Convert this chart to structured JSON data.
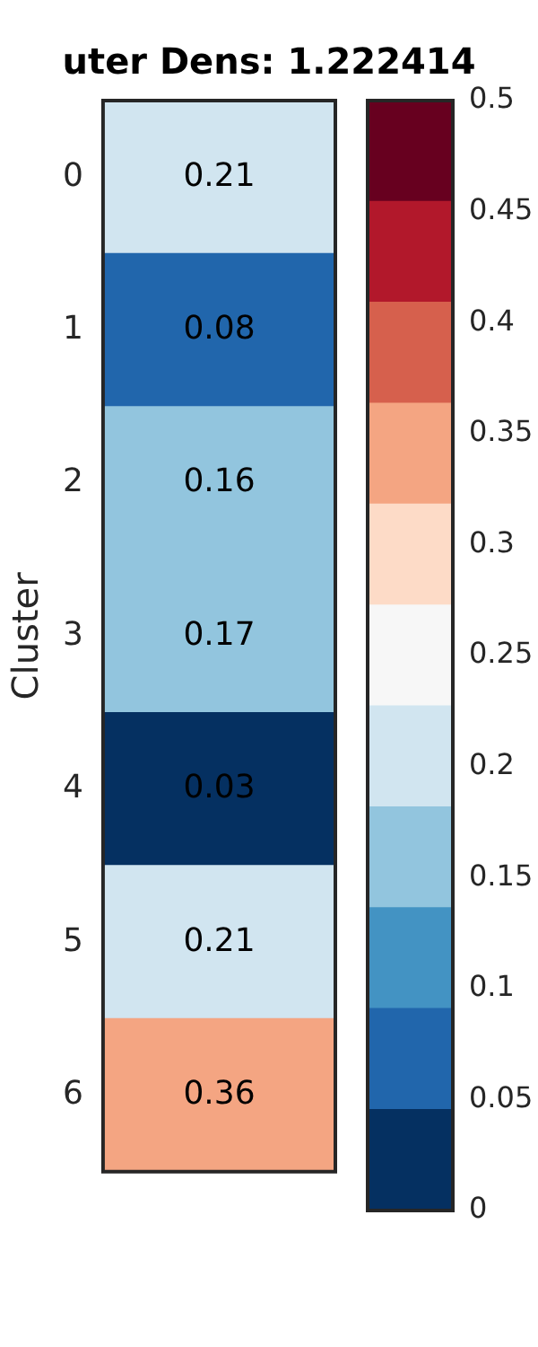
{
  "chart_data": {
    "type": "heatmap",
    "title": "uter Dens: 1.222414",
    "ylabel": "Cluster",
    "categories": [
      null
    ],
    "y_categories": [
      "0",
      "1",
      "2",
      "3",
      "4",
      "5",
      "6"
    ],
    "cells": [
      [
        0.21
      ],
      [
        0.08
      ],
      [
        0.16
      ],
      [
        0.17
      ],
      [
        0.03
      ],
      [
        0.21
      ],
      [
        0.36
      ]
    ],
    "data_labels": true,
    "colors": [
      "#053061",
      "#2166ac",
      "#4393c3",
      "#92c5de",
      "#d1e5f0",
      "#f7f7f7",
      "#fddbc7",
      "#f4a582",
      "#d6604d",
      "#b2182b",
      "#67001f"
    ],
    "clim": [
      0,
      0.5
    ],
    "cticks": [
      0,
      0.05,
      0.1,
      0.15,
      0.2,
      0.25,
      0.3,
      0.35,
      0.4,
      0.45,
      0.5
    ]
  }
}
